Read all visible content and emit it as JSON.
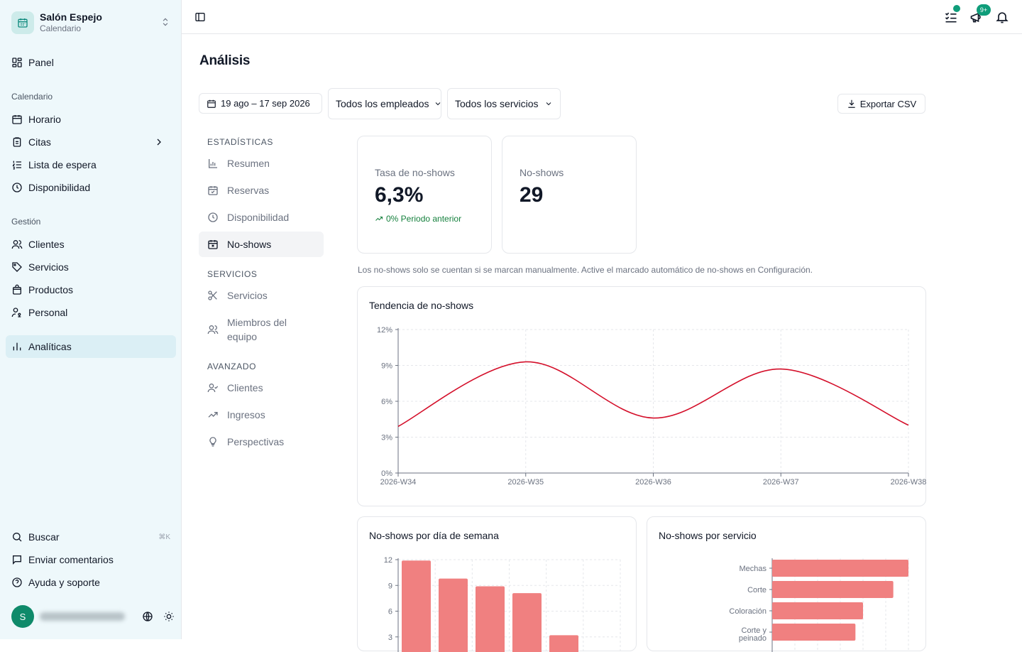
{
  "brand": {
    "name": "Salón Espejo",
    "subtitle": "Calendario",
    "icon": "calendar-icon"
  },
  "sidebar": {
    "panel": "Panel",
    "sections": {
      "calendar": "Calendario",
      "management": "Gestión"
    },
    "calendar_items": [
      "Horario",
      "Citas",
      "Lista de espera",
      "Disponibilidad"
    ],
    "management_items": [
      "Clientes",
      "Servicios",
      "Productos",
      "Personal"
    ],
    "analytics": "Analíticas",
    "bottom": {
      "search": "Buscar",
      "search_kbd": "⌘K",
      "feedback": "Enviar comentarios",
      "help": "Ayuda y soporte"
    },
    "user": {
      "initial": "S"
    }
  },
  "topbar": {
    "notification_badge": "9+"
  },
  "page": {
    "title": "Análisis",
    "date_range": "19 ago – 17 sep 2026",
    "employees_select": "Todos los empleados",
    "services_select": "Todos los servicios",
    "export": "Exportar CSV"
  },
  "subnav": {
    "stats_section": "ESTADÍSTICAS",
    "stats": [
      "Resumen",
      "Reservas",
      "Disponibilidad",
      "No-shows"
    ],
    "services_section": "SERVICIOS",
    "services": [
      "Servicios",
      "Miembros del equipo"
    ],
    "advanced_section": "AVANZADO",
    "advanced": [
      "Clientes",
      "Ingresos",
      "Perspectivas"
    ]
  },
  "kpis": {
    "rate": {
      "label": "Tasa de no-shows",
      "value": "6,3%",
      "trend": "0% Periodo anterior"
    },
    "count": {
      "label": "No-shows",
      "value": "29"
    }
  },
  "note": "Los no-shows solo se cuentan si se marcan manualmente. Active el marcado automático de no-shows en Configuración.",
  "colors": {
    "accent": "#0f9d7a",
    "line": "#d40f2a",
    "bar": "#f08080"
  },
  "chart_data": [
    {
      "type": "line",
      "title": "Tendencia de no-shows",
      "x": [
        "2026-W34",
        "2026-W35",
        "2026-W36",
        "2026-W37",
        "2026-W38"
      ],
      "yticks": [
        "0%",
        "3%",
        "6%",
        "9%",
        "12%"
      ],
      "ylim": [
        0,
        12
      ],
      "series": [
        {
          "values": [
            3.9,
            9.3,
            4.6,
            8.7,
            4.0
          ]
        }
      ],
      "grid": true
    },
    {
      "type": "bar",
      "title": "No-shows por día de semana",
      "yticks": [
        "3",
        "6",
        "9",
        "12"
      ],
      "ylim": [
        0,
        12
      ],
      "values": [
        11.9,
        9.8,
        8.9,
        8.1,
        3.2
      ],
      "grid": true
    },
    {
      "type": "bar",
      "orientation": "horizontal",
      "title": "No-shows por servicio",
      "categories": [
        "Mechas",
        "Corte",
        "Coloración",
        "Corte y peinado"
      ],
      "values": [
        9,
        8,
        6,
        5.5
      ],
      "xlim": [
        0,
        9
      ],
      "grid": true
    }
  ]
}
